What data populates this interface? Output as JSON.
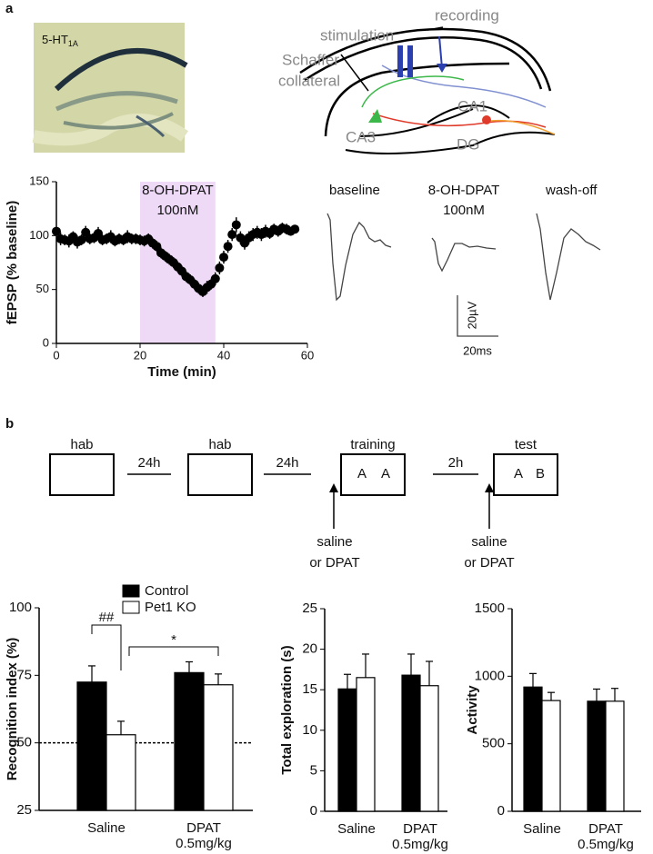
{
  "panel_labels": [
    "a",
    "b"
  ],
  "histology": {
    "label": "5-HT",
    "label_sub": "1A"
  },
  "schematic": {
    "labels": [
      "recording",
      "stimulation",
      "Schaffer",
      "collateral",
      "CA1",
      "CA3",
      "DG"
    ]
  },
  "traces": {
    "labels": [
      "baseline",
      "8-OH-DPAT",
      "100nM",
      "wash-off"
    ],
    "scale_y": "20µV",
    "scale_x": "20ms"
  },
  "protocol": {
    "sessions": [
      "hab",
      "hab",
      "training",
      "test"
    ],
    "intervals": [
      "24h",
      "24h",
      "2h"
    ],
    "objects": [
      [
        "A",
        "A"
      ],
      [
        "A",
        "B"
      ]
    ],
    "injection": [
      "saline",
      "or DPAT"
    ]
  },
  "chart_data": [
    {
      "type": "scatter",
      "ylabel": "fEPSP (% baseline)",
      "xlabel": "Time (min)",
      "x": [
        0,
        1,
        2,
        3,
        4,
        5,
        6,
        7,
        8,
        9,
        10,
        11,
        12,
        13,
        14,
        15,
        16,
        17,
        18,
        19,
        20,
        21,
        22,
        23,
        24,
        25,
        26,
        27,
        28,
        29,
        30,
        31,
        32,
        33,
        34,
        35,
        36,
        37,
        38,
        39,
        40,
        41,
        42,
        43,
        44,
        45,
        46,
        47,
        48,
        49,
        50,
        51,
        52,
        53,
        54,
        55,
        56,
        57
      ],
      "series": [
        {
          "color": "#000000",
          "values": [
            104,
            97,
            96,
            95,
            99,
            94,
            96,
            103,
            97,
            98,
            102,
            96,
            97,
            99,
            95,
            97,
            96,
            99,
            97,
            97,
            96,
            95,
            97,
            93,
            90,
            84,
            81,
            78,
            75,
            71,
            67,
            62,
            59,
            55,
            51,
            48,
            52,
            55,
            60,
            70,
            80,
            90,
            101,
            110,
            98,
            93,
            98,
            101,
            103,
            101,
            104,
            102,
            106,
            104,
            107,
            106,
            104,
            106
          ],
          "errors": [
            4,
            6,
            5,
            6,
            5,
            6,
            5,
            6,
            5,
            5,
            6,
            5,
            5,
            6,
            5,
            5,
            5,
            6,
            5,
            5,
            5,
            5,
            5,
            5,
            5,
            5,
            5,
            5,
            5,
            5,
            5,
            5,
            5,
            5,
            5,
            5,
            6,
            5,
            6,
            6,
            6,
            6,
            6,
            7,
            6,
            6,
            6,
            6,
            6,
            6,
            6,
            5,
            5,
            5,
            5,
            5,
            4,
            4
          ]
        }
      ],
      "xlim": [
        0,
        60
      ],
      "xticks": [
        0,
        20,
        40,
        60
      ],
      "ylim": [
        0,
        150
      ],
      "yticks": [
        0,
        50,
        100,
        150
      ],
      "shaded": {
        "x": [
          20,
          38
        ],
        "color": "#eed9f7",
        "annotation": [
          "8-OH-DPAT",
          "100nM"
        ]
      }
    },
    {
      "type": "bar",
      "ylabel": "Recognition index (%)",
      "categories": [
        [
          "Saline"
        ],
        [
          "DPAT",
          "0.5mg/kg"
        ]
      ],
      "series": [
        {
          "name": "Control",
          "color": "#000000",
          "values": [
            72.5,
            76
          ],
          "errors": [
            6,
            4
          ]
        },
        {
          "name": "Pet1 KO",
          "color": "#ffffff",
          "values": [
            53,
            71.5
          ],
          "errors": [
            5,
            4
          ]
        }
      ],
      "ylim": [
        25,
        100
      ],
      "yticks": [
        25,
        50,
        75,
        100
      ],
      "reference_line": 50,
      "annotations": [
        "##",
        "*"
      ],
      "legend": "upper-left"
    },
    {
      "type": "bar",
      "ylabel": "Total exploration (s)",
      "categories": [
        [
          "Saline"
        ],
        [
          "DPAT",
          "0.5mg/kg"
        ]
      ],
      "series": [
        {
          "color": "#000000",
          "values": [
            15.1,
            16.8
          ],
          "errors": [
            1.8,
            2.6
          ]
        },
        {
          "color": "#ffffff",
          "values": [
            16.5,
            15.5
          ],
          "errors": [
            2.9,
            3
          ]
        }
      ],
      "ylim": [
        0,
        25
      ],
      "yticks": [
        0,
        5,
        10,
        15,
        20,
        25
      ]
    },
    {
      "type": "bar",
      "ylabel": "Activity",
      "categories": [
        [
          "Saline"
        ],
        [
          "DPAT",
          "0.5mg/kg"
        ]
      ],
      "series": [
        {
          "color": "#000000",
          "values": [
            920,
            815
          ],
          "errors": [
            100,
            90
          ]
        },
        {
          "color": "#ffffff",
          "values": [
            820,
            815
          ],
          "errors": [
            60,
            95
          ]
        }
      ],
      "ylim": [
        0,
        1500
      ],
      "yticks": [
        0,
        500,
        1000,
        1500
      ]
    }
  ]
}
